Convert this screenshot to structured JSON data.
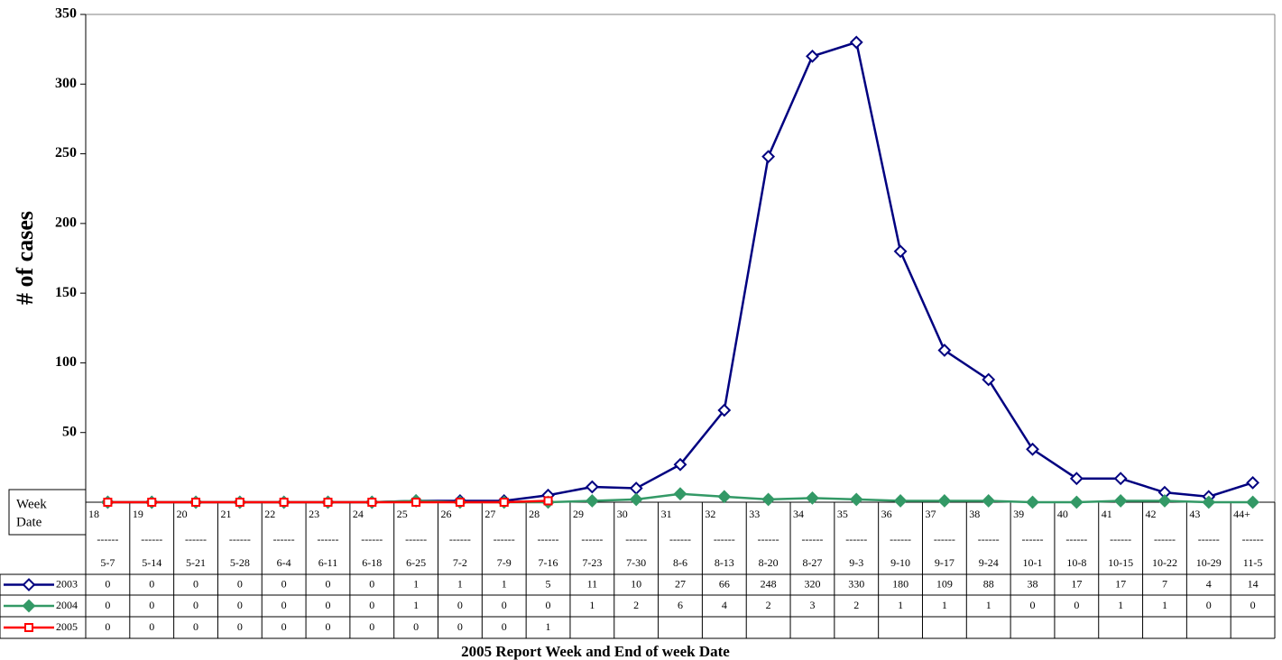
{
  "chart_data": {
    "type": "line",
    "x_axis_title": "2005 Report Week and End of week Date",
    "y_axis_title": "# of cases",
    "table_header": [
      "Week",
      "Date"
    ],
    "separator": "------",
    "categories": [
      "18",
      "19",
      "20",
      "21",
      "22",
      "23",
      "24",
      "25",
      "26",
      "27",
      "28",
      "29",
      "30",
      "31",
      "32",
      "33",
      "34",
      "35",
      "36",
      "37",
      "38",
      "39",
      "40",
      "41",
      "42",
      "43",
      "44+"
    ],
    "dates": [
      "5-7",
      "5-14",
      "5-21",
      "5-28",
      "6-4",
      "6-11",
      "6-18",
      "6-25",
      "7-2",
      "7-9",
      "7-16",
      "7-23",
      "7-30",
      "8-6",
      "8-13",
      "8-20",
      "8-27",
      "9-3",
      "9-10",
      "9-17",
      "9-24",
      "10-1",
      "10-8",
      "10-15",
      "10-22",
      "10-29",
      "11-5"
    ],
    "series": [
      {
        "name": "2003",
        "color": "#000080",
        "marker": "diamond-open",
        "values": [
          0,
          0,
          0,
          0,
          0,
          0,
          0,
          1,
          1,
          1,
          5,
          11,
          10,
          27,
          66,
          248,
          320,
          330,
          180,
          109,
          88,
          38,
          17,
          17,
          7,
          4,
          14
        ]
      },
      {
        "name": "2004",
        "color": "#339966",
        "marker": "diamond-filled",
        "values": [
          0,
          0,
          0,
          0,
          0,
          0,
          0,
          1,
          0,
          0,
          0,
          1,
          2,
          6,
          4,
          2,
          3,
          2,
          1,
          1,
          1,
          0,
          0,
          1,
          1,
          0,
          0
        ]
      },
      {
        "name": "2005",
        "color": "#ff0000",
        "marker": "square-open",
        "values": [
          0,
          0,
          0,
          0,
          0,
          0,
          0,
          0,
          0,
          0,
          1,
          null,
          null,
          null,
          null,
          null,
          null,
          null,
          null,
          null,
          null,
          null,
          null,
          null,
          null,
          null,
          null
        ]
      }
    ],
    "ylim": [
      0,
      350
    ],
    "yticks": [
      50,
      100,
      150,
      200,
      250,
      300,
      350
    ],
    "grid": false
  }
}
